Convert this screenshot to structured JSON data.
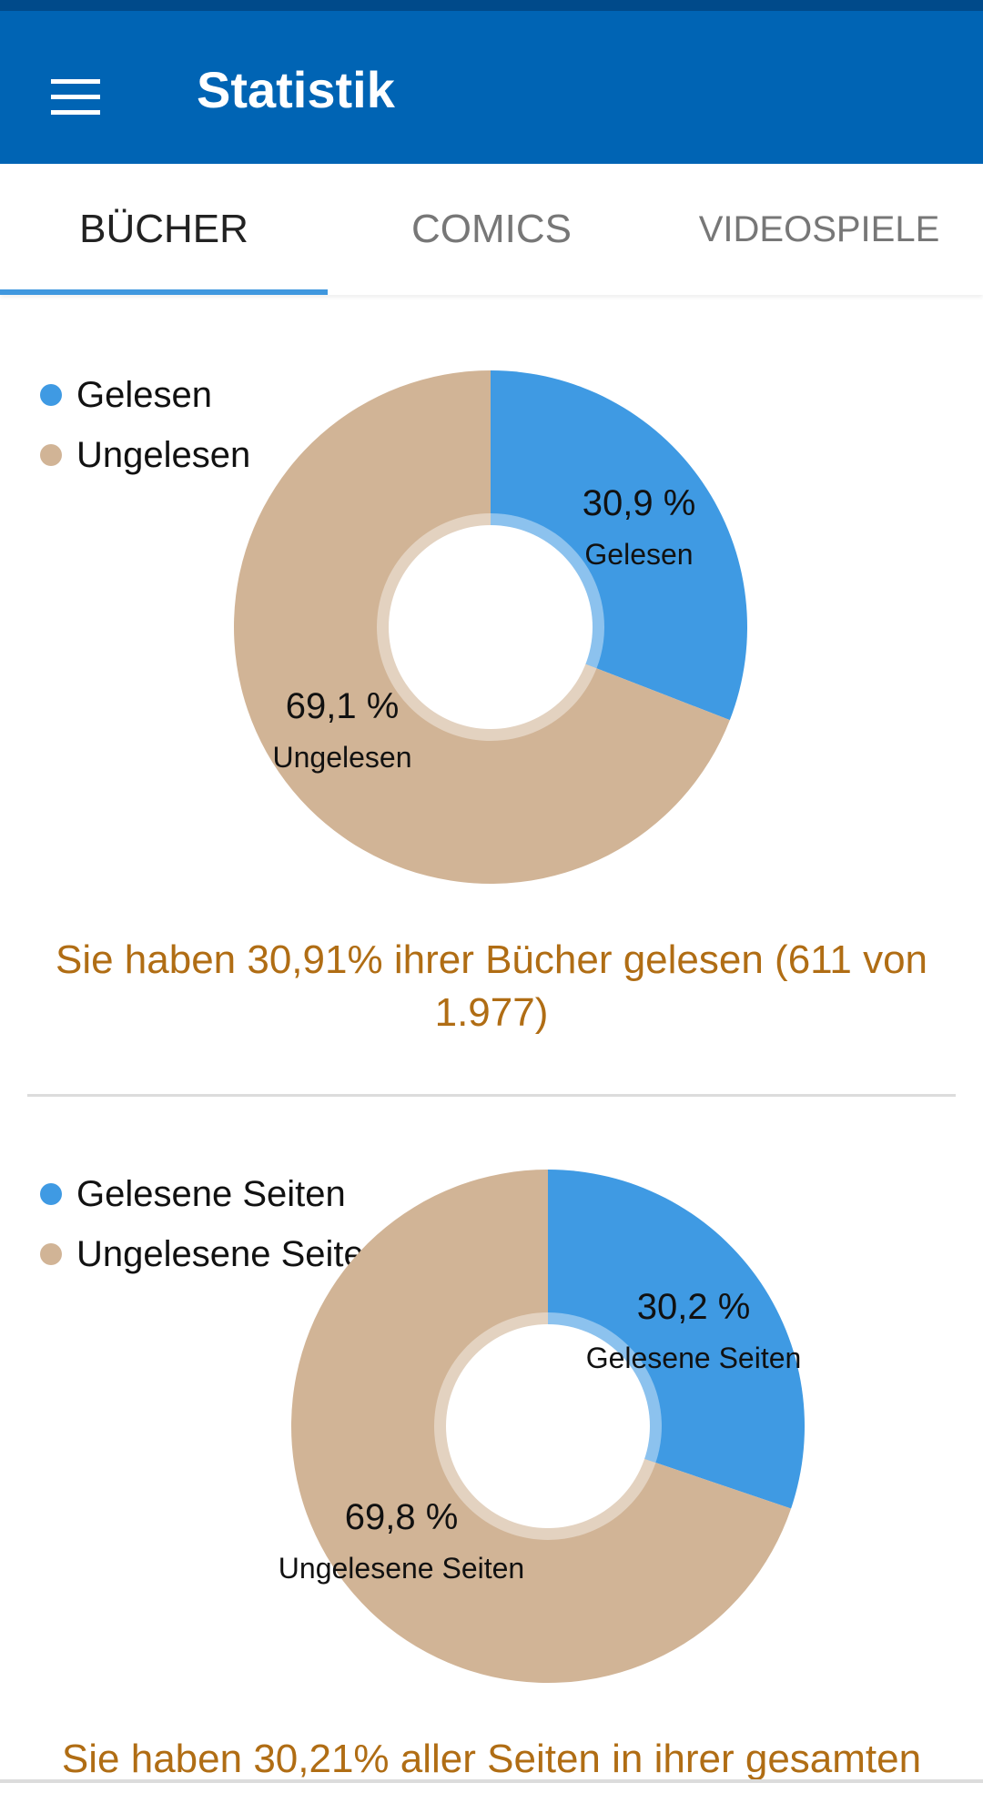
{
  "app_bar": {
    "title": "Statistik",
    "menu_icon": "hamburger-menu-icon"
  },
  "tabs": [
    {
      "label": "BÜCHER",
      "active": true
    },
    {
      "label": "COMICS",
      "active": false
    },
    {
      "label": "VIDEOSPIELE",
      "active": false
    }
  ],
  "colors": {
    "primary": "#0064b4",
    "read": "#3f9ae3",
    "unread": "#d1b496",
    "summary_text": "#b06d14",
    "tab_indicator": "#3f97de"
  },
  "chart_data": [
    {
      "type": "pie",
      "variant": "donut",
      "legend_position": "top-left",
      "slices": [
        {
          "label": "Gelesen",
          "value": 30.9,
          "display": "30,9 %",
          "color": "#3f9ae3"
        },
        {
          "label": "Ungelesen",
          "value": 69.1,
          "display": "69,1 %",
          "color": "#d1b496"
        }
      ],
      "summary": "Sie haben 30,91% ihrer Bücher gelesen (611 von 1.977)"
    },
    {
      "type": "pie",
      "variant": "donut",
      "legend_position": "top-left",
      "slices": [
        {
          "label": "Gelesene Seiten",
          "value": 30.2,
          "display": "30,2 %",
          "color": "#3f9ae3"
        },
        {
          "label": "Ungelesene Seiten",
          "value": 69.8,
          "display": "69,8 %",
          "color": "#d1b496"
        }
      ],
      "summary": "Sie haben 30,21% aller Seiten in ihrer gesamten"
    }
  ]
}
